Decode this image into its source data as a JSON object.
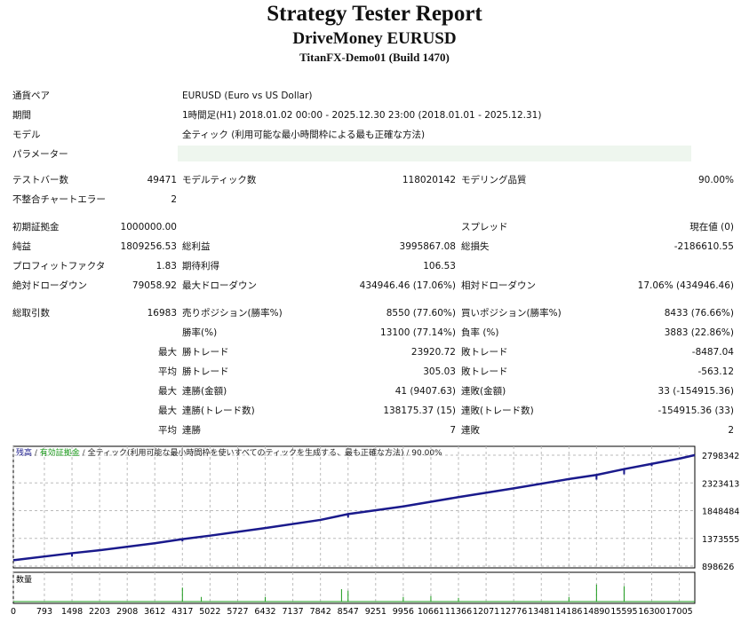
{
  "header": {
    "title": "Strategy Tester Report",
    "expert": "DriveMoney EURUSD",
    "server": "TitanFX-Demo01 (Build 1470)"
  },
  "info": [
    {
      "label": "通貨ペア",
      "value": "EURUSD (Euro vs US Dollar)"
    },
    {
      "label": "期間",
      "value": "1時間足(H1) 2018.01.02 00:00 - 2025.12.30 23:00 (2018.01.01 - 2025.12.31)"
    },
    {
      "label": "モデル",
      "value": "全ティック (利用可能な最小時間枠による最も正確な方法)"
    },
    {
      "label": "パラメーター",
      "value": ""
    }
  ],
  "stats": [
    [
      "テストバー数",
      "49471",
      "モデルティック数",
      "118020142",
      "モデリング品質",
      "90.00%"
    ],
    [
      "不整合チャートエラー",
      "2",
      "",
      "",
      "",
      ""
    ],
    [
      "初期証拠金",
      "1000000.00",
      "",
      "",
      "スプレッド",
      "現在値 (0)"
    ],
    [
      "純益",
      "1809256.53",
      "総利益",
      "3995867.08",
      "総損失",
      "-2186610.55"
    ],
    [
      "プロフィットファクタ",
      "1.83",
      "期待利得",
      "106.53",
      "",
      ""
    ],
    [
      "絶対ドローダウン",
      "79058.92",
      "最大ドローダウン",
      "434946.46 (17.06%)",
      "相対ドローダウン",
      "17.06% (434946.46)"
    ],
    [
      "総取引数",
      "16983",
      "売りポジション(勝率%)",
      "8550 (77.60%)",
      "買いポジション(勝率%)",
      "8433 (76.66%)"
    ],
    [
      "",
      "",
      "勝率(%)",
      "13100 (77.14%)",
      "負率 (%)",
      "3883 (22.86%)"
    ],
    [
      "",
      "最大",
      "勝トレード",
      "23920.72",
      "敗トレード",
      "-8487.04"
    ],
    [
      "",
      "平均",
      "勝トレード",
      "305.03",
      "敗トレード",
      "-563.12"
    ],
    [
      "",
      "最大",
      "連勝(金額)",
      "41 (9407.63)",
      "連敗(金額)",
      "33 (-154915.36)"
    ],
    [
      "",
      "最大",
      "連勝(トレード数)",
      "138175.37 (15)",
      "連敗(トレード数)",
      "-154915.36 (33)"
    ],
    [
      "",
      "平均",
      "連勝",
      "7",
      "連敗",
      "2"
    ]
  ],
  "chart_data": {
    "type": "line",
    "legend": {
      "balance": "残高",
      "equity": "有効証拠金",
      "model": "全ティック(利用可能な最小時間枠を使いすべてのティックを生成する、最も正確な方法)",
      "quality": "90.00%"
    },
    "volume_label": "数量",
    "colors": {
      "balance": "#1a1a8c",
      "equity": "#1a9a1a",
      "volume": "#1a9a1a"
    },
    "yticks": [
      898626,
      1373555,
      1848484,
      2323413,
      2798342
    ],
    "xticks": [
      0,
      793,
      1498,
      2203,
      2908,
      3612,
      4317,
      5022,
      5727,
      6432,
      7137,
      7842,
      8547,
      9251,
      9956,
      10661,
      11366,
      12071,
      12776,
      13481,
      14186,
      14890,
      15595,
      16300,
      17005
    ],
    "ylim": [
      898626,
      2798342
    ],
    "xlim": [
      0,
      17400
    ],
    "series": [
      {
        "x": [
          0,
          1498,
          2203,
          3612,
          4317,
          5022,
          6432,
          7842,
          8547,
          9956,
          11366,
          12776,
          14186,
          14890,
          15595,
          16300,
          17005,
          17400
        ],
        "y": [
          1000000,
          1120000,
          1170000,
          1290000,
          1360000,
          1420000,
          1550000,
          1690000,
          1790000,
          1920000,
          2080000,
          2230000,
          2390000,
          2460000,
          2560000,
          2650000,
          2740000,
          2800000
        ]
      }
    ],
    "volume_spikes": [
      [
        4317,
        0.45
      ],
      [
        8380,
        0.4
      ],
      [
        8547,
        0.35
      ],
      [
        14890,
        0.55
      ],
      [
        15595,
        0.5
      ],
      [
        6432,
        0.15
      ],
      [
        10661,
        0.18
      ],
      [
        4800,
        0.15
      ],
      [
        9956,
        0.15
      ],
      [
        14186,
        0.15
      ],
      [
        11366,
        0.12
      ]
    ]
  }
}
